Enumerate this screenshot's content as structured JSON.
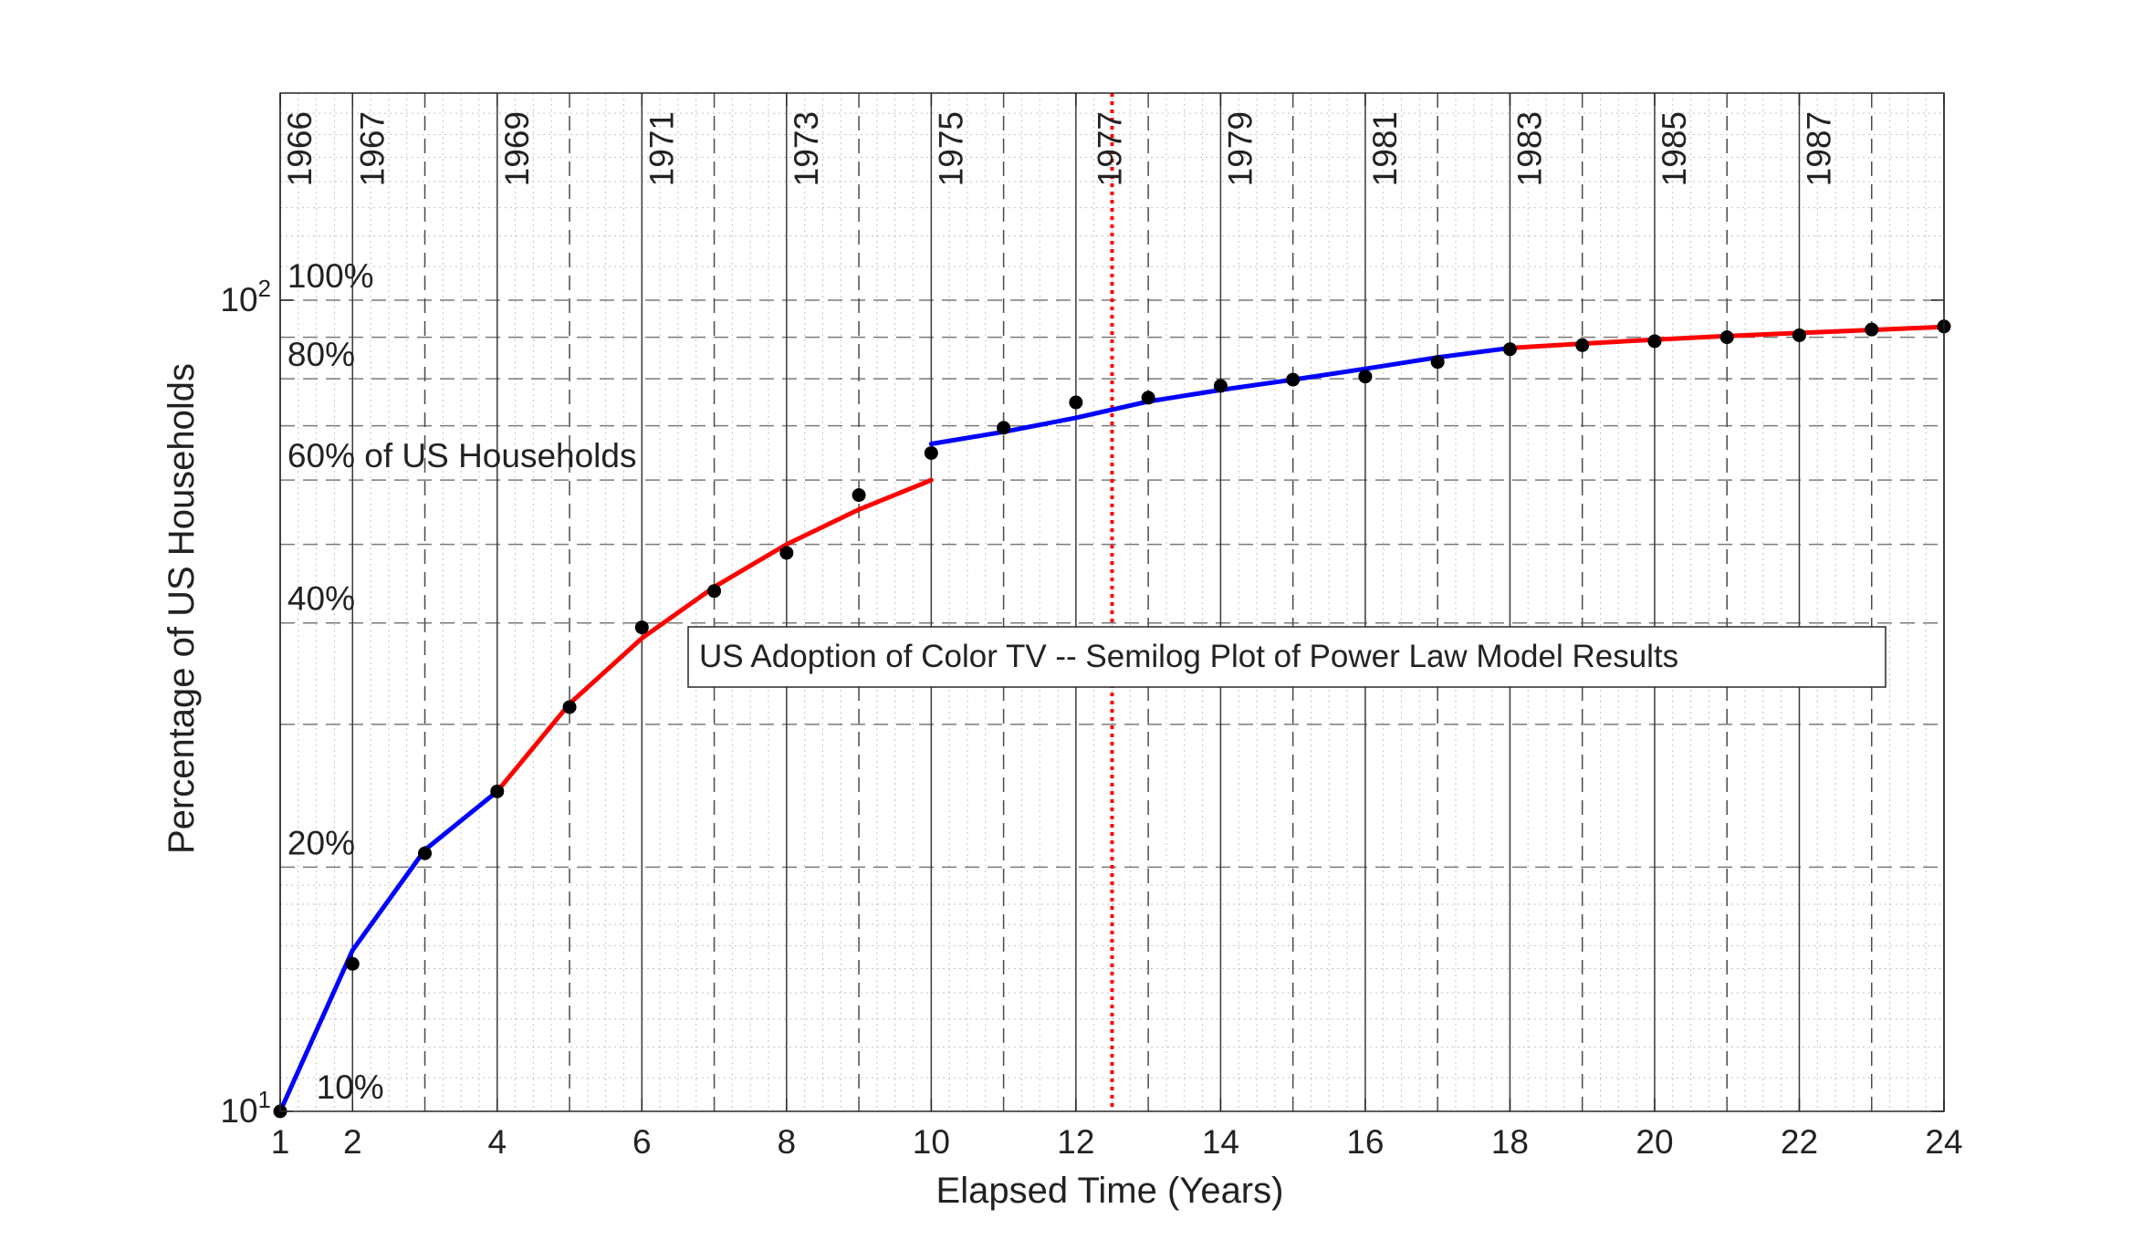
{
  "chart_data": {
    "type": "line",
    "title": "US Adoption of Color TV -- Semilog Plot of Power Law Model Results",
    "xlabel": "Elapsed Time (Years)",
    "ylabel": "Percentage of US Households",
    "xlim": [
      1,
      24
    ],
    "ylim": [
      10,
      180
    ],
    "yscale": "log",
    "grid": true,
    "legend_placement": "center",
    "x_ticks": [
      1,
      2,
      4,
      6,
      8,
      10,
      12,
      14,
      16,
      18,
      20,
      22,
      24
    ],
    "y_ticks": [
      {
        "base": "10",
        "exp": "1",
        "value": 10
      },
      {
        "base": "10",
        "exp": "2",
        "value": 100
      }
    ],
    "year_labels": [
      {
        "x": 1,
        "label": "1966"
      },
      {
        "x": 2,
        "label": "1967"
      },
      {
        "x": 4,
        "label": "1969"
      },
      {
        "x": 6,
        "label": "1971"
      },
      {
        "x": 8,
        "label": "1973"
      },
      {
        "x": 10,
        "label": "1975"
      },
      {
        "x": 12.2,
        "label": "1977"
      },
      {
        "x": 14,
        "label": "1979"
      },
      {
        "x": 16,
        "label": "1981"
      },
      {
        "x": 18,
        "label": "1983"
      },
      {
        "x": 20,
        "label": "1985"
      },
      {
        "x": 22,
        "label": "1987"
      }
    ],
    "solid_vlines": [
      1,
      2,
      4,
      6,
      8,
      10,
      12,
      14,
      16,
      18,
      20,
      22,
      24
    ],
    "dashed_vlines": [
      3,
      5,
      7,
      9,
      11,
      13,
      15,
      17,
      19,
      21,
      23
    ],
    "dashed_hlines": [
      20,
      30,
      40,
      50,
      60,
      70,
      80,
      90,
      100
    ],
    "percent_labels": [
      {
        "x": 1.5,
        "y": 10,
        "text": "10%"
      },
      {
        "x": 1.1,
        "y": 20,
        "text": "20%"
      },
      {
        "x": 1.1,
        "y": 40,
        "text": "40%"
      },
      {
        "x": 1.1,
        "y": 60,
        "text": "60% of US Households"
      },
      {
        "x": 1.1,
        "y": 80,
        "text": "80%"
      },
      {
        "x": 1.1,
        "y": 100,
        "text": "100%"
      }
    ],
    "reference_line": {
      "x": 12.5,
      "color": "#ff0000",
      "style": "dotted"
    },
    "points": {
      "x": [
        1,
        2,
        3,
        4,
        5,
        6,
        7,
        8,
        9,
        10,
        11,
        12,
        13,
        14,
        15,
        16,
        17,
        18,
        19,
        20,
        21,
        22,
        23,
        24
      ],
      "y": [
        10,
        15.2,
        20.8,
        24.8,
        31.5,
        39.5,
        43.8,
        48.8,
        57.5,
        64.8,
        69.6,
        74.8,
        75.8,
        78.4,
        79.8,
        80.5,
        83.9,
        87,
        88,
        89,
        90,
        90.5,
        92,
        92.8
      ]
    },
    "series": [
      {
        "x": [
          1,
          2,
          3,
          4
        ],
        "y": [
          10,
          15.8,
          21,
          24.8
        ],
        "color": "#0000ff"
      },
      {
        "x": [
          4,
          5,
          6,
          7,
          8,
          9,
          10
        ],
        "y": [
          24.8,
          31.8,
          38.3,
          44.3,
          50,
          55.2,
          60
        ],
        "color": "#ff0000"
      },
      {
        "x": [
          10,
          11,
          12,
          13,
          14,
          15,
          16,
          17,
          18
        ],
        "y": [
          66.5,
          68.8,
          71.6,
          75,
          77.5,
          79.8,
          82.3,
          85,
          87.3
        ],
        "color": "#0000ff"
      },
      {
        "x": [
          18,
          19,
          20,
          21,
          22,
          23,
          24
        ],
        "y": [
          87.3,
          88.4,
          89.4,
          90.3,
          91.1,
          91.9,
          92.7
        ],
        "color": "#ff0000"
      }
    ]
  }
}
